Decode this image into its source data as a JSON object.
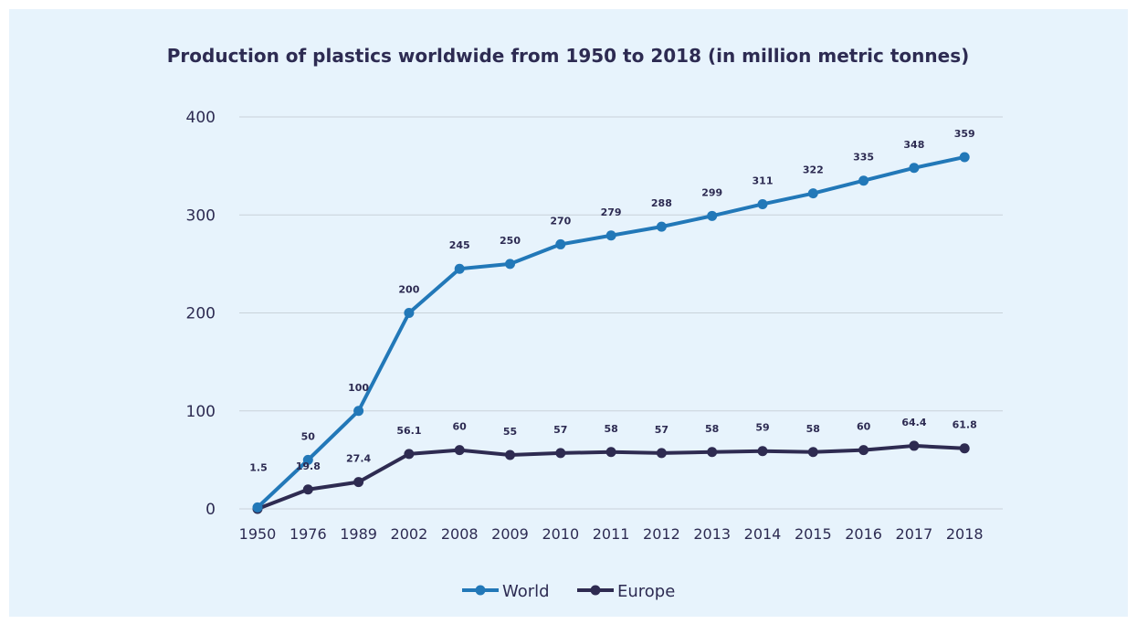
{
  "chart_data": {
    "type": "line",
    "title": "Production of plastics worldwide from 1950 to 2018 (in million metric tonnes)",
    "xlabel": "",
    "ylabel": "",
    "categories": [
      "1950",
      "1976",
      "1989",
      "2002",
      "2008",
      "2009",
      "2010",
      "2011",
      "2012",
      "2013",
      "2014",
      "2015",
      "2016",
      "2017",
      "2018"
    ],
    "ylim": [
      0,
      400
    ],
    "yticks": [
      "0",
      "100",
      "200",
      "300",
      "400"
    ],
    "grid": true,
    "legend_position": "bottom",
    "series": [
      {
        "name": "World",
        "color": "#2278b8",
        "values": [
          1.5,
          50,
          100,
          200,
          245,
          250,
          270,
          279,
          288,
          299,
          311,
          322,
          335,
          348,
          359
        ],
        "labels": [
          "1.5",
          "50",
          "100",
          "200",
          "245",
          "250",
          "270",
          "279",
          "288",
          "299",
          "311",
          "322",
          "335",
          "348",
          "359"
        ]
      },
      {
        "name": "Europe",
        "color": "#2e2b51",
        "values": [
          0,
          19.8,
          27.4,
          56.1,
          60,
          55,
          57,
          58,
          57,
          58,
          59,
          58,
          60,
          64.4,
          61.8
        ],
        "labels": [
          "",
          "19.8",
          "27.4",
          "56.1",
          "60",
          "55",
          "57",
          "58",
          "57",
          "58",
          "59",
          "58",
          "60",
          "64.4",
          "61.8"
        ]
      }
    ]
  }
}
